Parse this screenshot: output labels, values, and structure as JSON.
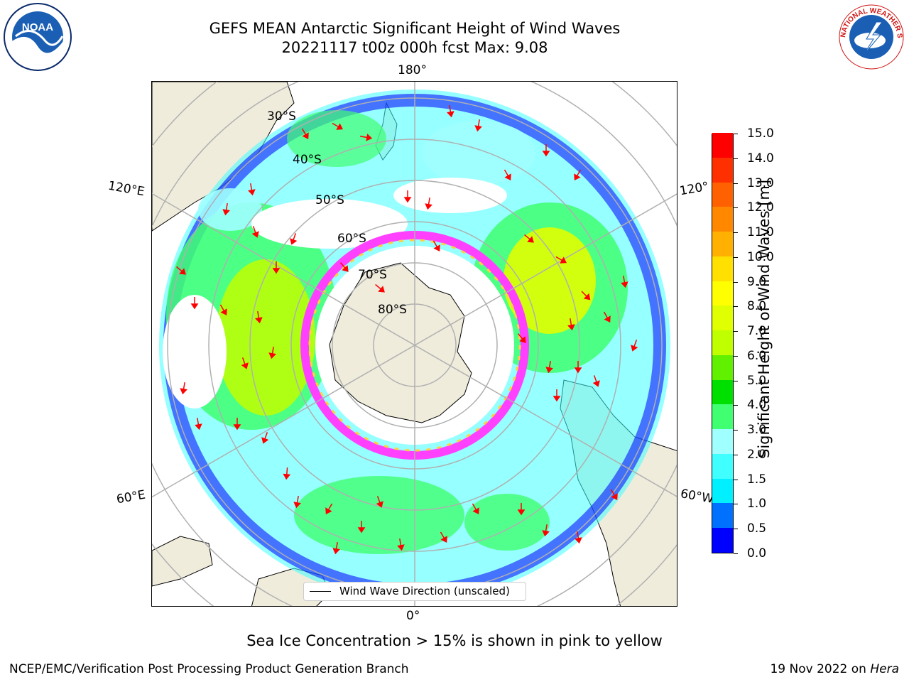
{
  "title": {
    "line1": "GEFS MEAN Antarctic Significant Height of Wind Waves",
    "line2": "20221117 t00z 000h fcst   Max: 9.08"
  },
  "map": {
    "longitude_labels": {
      "top": "180°",
      "bottom": "0°",
      "left_upper": "120°E",
      "left_lower": "60°E",
      "right_upper": "120°",
      "right_lower": "60°W"
    },
    "latitude_labels": [
      "30°S",
      "40°S",
      "50°S",
      "60°S",
      "70°S",
      "80°S"
    ],
    "colors": {
      "land": "#efecdc",
      "sea_ice_low": "#ff40ff",
      "sea_ice_high": "#ffd040",
      "arrow": "#ff0000",
      "grid": "#b0b0b0"
    }
  },
  "legend": {
    "label": "Wind Wave Direction (unscaled)"
  },
  "colorbar": {
    "title": "Significant Height of Wind Waves [m]",
    "ticks": [
      "0.0",
      "0.5",
      "1.0",
      "1.5",
      "2.0",
      "3.0",
      "4.0",
      "5.0",
      "6.0",
      "7.0",
      "8.0",
      "9.0",
      "10.0",
      "11.0",
      "12.0",
      "13.0",
      "14.0",
      "15.0"
    ],
    "colors": [
      "#0000ff",
      "#0070ff",
      "#00f0ff",
      "#40ffff",
      "#a0ffff",
      "#40ff70",
      "#00e000",
      "#60f000",
      "#c0ff00",
      "#e0ff00",
      "#ffff00",
      "#ffe000",
      "#ffb000",
      "#ff8800",
      "#ff6000",
      "#ff3000",
      "#ff0000"
    ]
  },
  "caption": "Sea Ice Concentration > 15% is shown in pink to yellow",
  "footer": {
    "left": "NCEP/EMC/Verification Post Processing Product Generation Branch",
    "date": "19 Nov 2022 on",
    "machine": "Hera"
  },
  "logos": {
    "left": "NOAA",
    "right": "NATIONAL WEATHER SERVICE"
  }
}
